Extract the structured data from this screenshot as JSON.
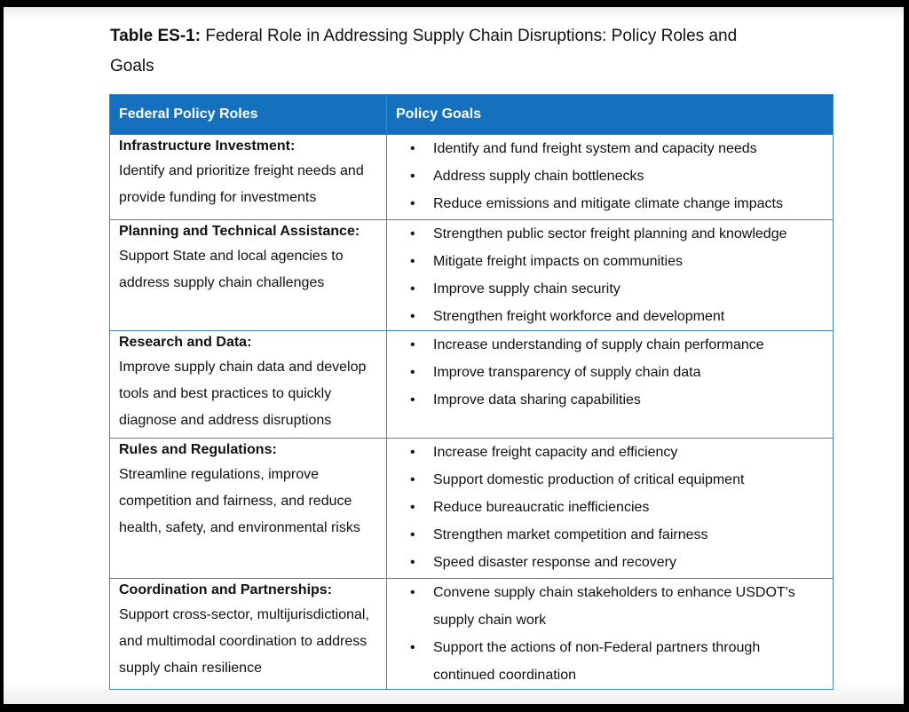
{
  "title": {
    "label": "Table ES-1:",
    "text": " Federal Role in Addressing Supply Chain Disruptions: Policy Roles and Goals"
  },
  "table": {
    "headers": [
      "Federal Policy Roles",
      "Policy Goals"
    ],
    "rows": [
      {
        "role": "Infrastructure Investment:",
        "desc": "Identify and prioritize freight needs and provide funding for investments",
        "goals": [
          "Identify and fund freight system and capacity needs",
          "Address supply chain bottlenecks",
          "Reduce emissions and mitigate climate change impacts"
        ]
      },
      {
        "role": "Planning and Technical Assistance:",
        "desc": "Support State and local agencies to address supply chain challenges",
        "goals": [
          "Strengthen public sector freight planning and knowledge",
          "Mitigate freight impacts on communities",
          "Improve supply chain security",
          "Strengthen freight workforce and development"
        ]
      },
      {
        "role": "Research and Data:",
        "desc": "Improve supply chain data and develop tools and best practices to quickly diagnose and address disruptions",
        "goals": [
          "Increase understanding of supply chain performance",
          "Improve transparency of supply chain data",
          "Improve data sharing capabilities"
        ]
      },
      {
        "role": "Rules and Regulations:",
        "desc": "Streamline regulations, improve competition and fairness, and reduce health, safety, and environmental risks",
        "goals": [
          "Increase freight capacity and efficiency",
          "Support domestic production of critical equipment",
          "Reduce bureaucratic inefficiencies",
          "Strengthen market competition and fairness",
          "Speed disaster response and recovery"
        ]
      },
      {
        "role": "Coordination and Partnerships:",
        "desc": "Support cross-sector, multijurisdictional, and multimodal coordination to address supply chain resilience",
        "goals": [
          "Convene supply chain stakeholders to enhance USDOT's supply chain work",
          "Support the actions of non-Federal partners through continued coordination"
        ]
      }
    ]
  },
  "colors": {
    "header_bg": "#1570be",
    "border": "#3d86c8"
  }
}
